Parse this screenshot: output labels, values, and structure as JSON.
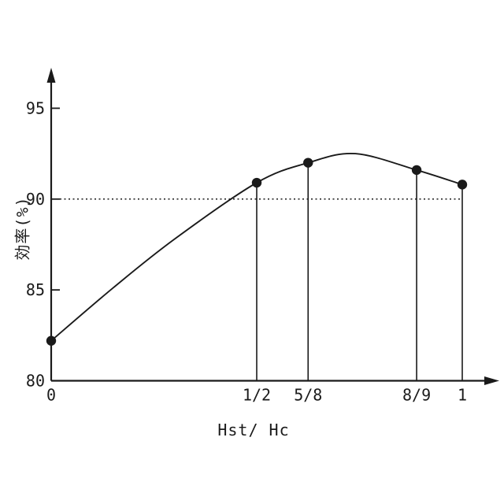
{
  "figure": {
    "background_color": "#ffffff",
    "line_color": "#1a1a1a"
  },
  "chart_data": {
    "type": "line",
    "title": "",
    "xlabel": "Hst/ Hc",
    "ylabel": "効率(%)",
    "x_axis": {
      "range": [
        0,
        1.09
      ],
      "ticks": [
        {
          "x": 0,
          "label": "0"
        },
        {
          "x": 0.5,
          "label": "1/2"
        },
        {
          "x": 0.625,
          "label": "5/8"
        },
        {
          "x": 0.889,
          "label": "8/9"
        },
        {
          "x": 1,
          "label": "1"
        }
      ]
    },
    "y_axis": {
      "range": [
        80,
        97
      ],
      "ticks": [
        {
          "value": 95,
          "label": "95"
        },
        {
          "value": 90,
          "label": "90"
        },
        {
          "value": 85,
          "label": "85"
        },
        {
          "value": 80,
          "label": "80"
        }
      ]
    },
    "reference_line": {
      "value": 90,
      "style": "dotted"
    },
    "series": [
      {
        "name": "efficiency-curve",
        "marked_points": [
          {
            "x": 0,
            "x_label": "0",
            "y": 82.2,
            "dropline": false
          },
          {
            "x": 0.5,
            "x_label": "1/2",
            "y": 90.9,
            "dropline": true
          },
          {
            "x": 0.625,
            "x_label": "5/8",
            "y": 92.0,
            "dropline": true
          },
          {
            "x": 0.889,
            "x_label": "8/9",
            "y": 91.6,
            "dropline": true
          },
          {
            "x": 1,
            "x_label": "1",
            "y": 90.8,
            "dropline": true
          }
        ],
        "curve_shape_points": [
          [
            0,
            82.2
          ],
          [
            0.15,
            85.1
          ],
          [
            0.3,
            87.8
          ],
          [
            0.5,
            90.9
          ],
          [
            0.625,
            92.0
          ],
          [
            0.74,
            92.5
          ],
          [
            0.889,
            91.6
          ],
          [
            1,
            90.8
          ]
        ],
        "peak": {
          "x": 0.74,
          "y": 92.5
        }
      }
    ],
    "grid": false,
    "legend": null
  }
}
